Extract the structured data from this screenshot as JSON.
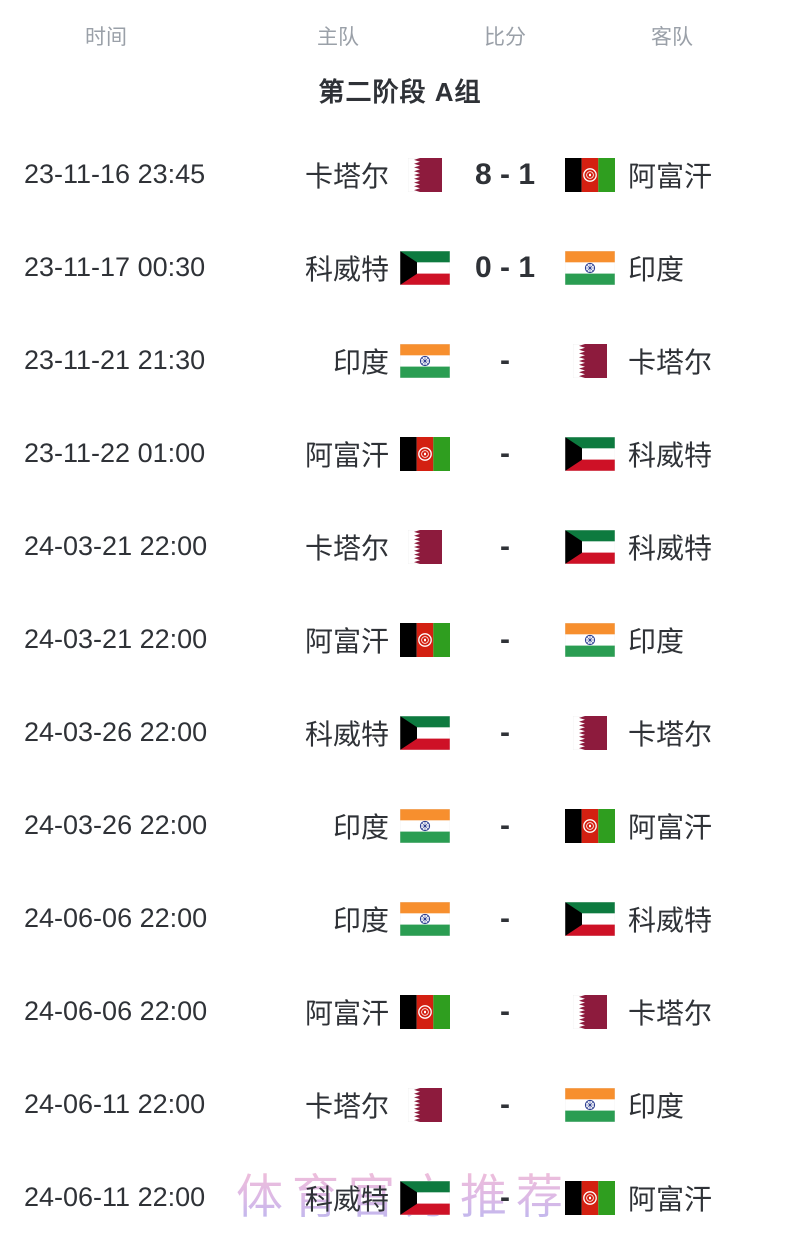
{
  "header": {
    "columns": [
      "时间",
      "主队",
      "比分",
      "客队"
    ]
  },
  "section": {
    "title": "第二阶段 A组"
  },
  "watermark": {
    "text": "体育官方推荐"
  },
  "teams": {
    "qatar": {
      "name": "卡塔尔",
      "flag": "qatar-flag-icon"
    },
    "afghanistan": {
      "name": "阿富汗",
      "flag": "afghanistan-flag-icon"
    },
    "kuwait": {
      "name": "科威特",
      "flag": "kuwait-flag-icon"
    },
    "india": {
      "name": "印度",
      "flag": "india-flag-icon"
    }
  },
  "colors": {
    "header_text": "#9aa0a8",
    "body_text": "#2f3237",
    "watermark_top": "#f7bdd3",
    "watermark_bottom": "#b4b3f0",
    "qatar_maroon": "#8d1b3d",
    "kuwait_green": "#0d7a3f",
    "kuwait_red": "#ce1126",
    "kuwait_black": "#000000",
    "india_saffron": "#f78f2e",
    "india_green": "#2a9d52",
    "india_navy": "#2a3c8f",
    "afghan_black": "#000000",
    "afghan_red": "#d32011",
    "afghan_green": "#2f9e1f",
    "white": "#ffffff"
  },
  "matches": [
    {
      "time": "23-11-16 23:45",
      "home": "qatar",
      "score": "8 - 1",
      "away": "afghanistan"
    },
    {
      "time": "23-11-17 00:30",
      "home": "kuwait",
      "score": "0 - 1",
      "away": "india"
    },
    {
      "time": "23-11-21 21:30",
      "home": "india",
      "score": "-",
      "away": "qatar"
    },
    {
      "time": "23-11-22 01:00",
      "home": "afghanistan",
      "score": "-",
      "away": "kuwait"
    },
    {
      "time": "24-03-21 22:00",
      "home": "qatar",
      "score": "-",
      "away": "kuwait"
    },
    {
      "time": "24-03-21 22:00",
      "home": "afghanistan",
      "score": "-",
      "away": "india"
    },
    {
      "time": "24-03-26 22:00",
      "home": "kuwait",
      "score": "-",
      "away": "qatar"
    },
    {
      "time": "24-03-26 22:00",
      "home": "india",
      "score": "-",
      "away": "afghanistan"
    },
    {
      "time": "24-06-06 22:00",
      "home": "india",
      "score": "-",
      "away": "kuwait"
    },
    {
      "time": "24-06-06 22:00",
      "home": "afghanistan",
      "score": "-",
      "away": "qatar"
    },
    {
      "time": "24-06-11 22:00",
      "home": "qatar",
      "score": "-",
      "away": "india"
    },
    {
      "time": "24-06-11 22:00",
      "home": "kuwait",
      "score": "-",
      "away": "afghanistan"
    }
  ]
}
